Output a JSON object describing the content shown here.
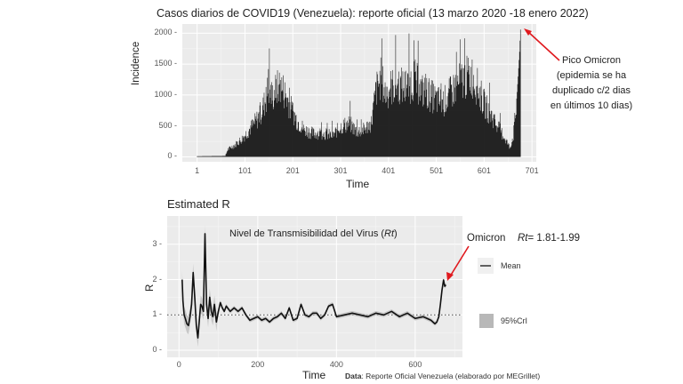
{
  "chart_data": [
    {
      "type": "bar",
      "title": "Casos diarios de COVID19  (Venezuela): reporte oficial (13 marzo 2020 -18 enero 2022)",
      "xlabel": "Time",
      "ylabel": "Incidence",
      "xticks": [
        "1",
        "101",
        "201",
        "301",
        "401",
        "501",
        "601",
        "701"
      ],
      "yticks": [
        "0",
        "500",
        "1000",
        "1500",
        "2000"
      ],
      "xlim": [
        -30,
        710
      ],
      "ylim": [
        -80,
        2150
      ],
      "grid": true,
      "annotation": {
        "lines": [
          "Pico Omicron",
          "(epidemia se ha",
          "duplicado c/2 dias",
          "en últimos 10 dias)"
        ],
        "arrow_color": "#e0191e",
        "x": 677,
        "y": 2060
      },
      "x_knots": [
        1,
        60,
        65,
        80,
        95,
        110,
        125,
        135,
        145,
        150,
        158,
        165,
        175,
        185,
        195,
        210,
        225,
        235,
        245,
        255,
        270,
        285,
        300,
        320,
        335,
        350,
        365,
        375,
        385,
        395,
        405,
        420,
        440,
        455,
        470,
        485,
        500,
        515,
        530,
        545,
        560,
        575,
        585,
        600,
        615,
        630,
        645,
        655,
        662,
        668,
        672,
        675,
        677
      ],
      "y_knots": [
        10,
        15,
        120,
        200,
        300,
        450,
        600,
        750,
        950,
        1150,
        1000,
        1100,
        1200,
        1050,
        850,
        600,
        450,
        420,
        380,
        400,
        380,
        350,
        500,
        550,
        420,
        450,
        560,
        1100,
        1300,
        1050,
        1150,
        1200,
        1150,
        1300,
        1100,
        1050,
        950,
        900,
        1050,
        1200,
        1300,
        1350,
        1200,
        900,
        700,
        500,
        300,
        150,
        350,
        800,
        1300,
        1700,
        2060
      ]
    },
    {
      "type": "line",
      "title": "Estimated R",
      "subtitle": "Nivel de Transmisibilidad del Virus (Rt)",
      "xlabel": "Time",
      "ylabel": "R",
      "xticks": [
        "0",
        "200",
        "400",
        "600"
      ],
      "yticks": [
        "0",
        "1",
        "2",
        "3"
      ],
      "xlim": [
        -30,
        720
      ],
      "ylim": [
        -0.2,
        3.8
      ],
      "reference_line": 1,
      "legend": [
        {
          "label": "Mean",
          "kind": "line"
        },
        {
          "label": "95%CrI",
          "kind": "box"
        }
      ],
      "annotation": {
        "text": "Omicron",
        "rt_label": "Rt",
        "rt_value": "= 1.81-1.99",
        "arrow_color": "#e0191e"
      },
      "series": [
        {
          "name": "Mean",
          "x": [
            8,
            10,
            13,
            16,
            20,
            24,
            28,
            32,
            36,
            40,
            44,
            48,
            52,
            55,
            58,
            62,
            66,
            70,
            74,
            78,
            82,
            86,
            90,
            95,
            100,
            105,
            110,
            115,
            120,
            130,
            140,
            150,
            160,
            170,
            180,
            190,
            200,
            210,
            220,
            230,
            240,
            250,
            260,
            270,
            280,
            290,
            300,
            310,
            320,
            330,
            340,
            350,
            360,
            370,
            380,
            390,
            400,
            420,
            440,
            460,
            480,
            500,
            520,
            540,
            560,
            580,
            600,
            620,
            640,
            650,
            655,
            660,
            664,
            668,
            672,
            675,
            678
          ],
          "y": [
            2.0,
            1.4,
            1.0,
            0.9,
            0.75,
            0.7,
            0.95,
            1.3,
            2.2,
            1.5,
            0.7,
            0.35,
            0.9,
            1.3,
            1.25,
            1.1,
            3.3,
            1.3,
            0.9,
            1.5,
            1.1,
            0.95,
            1.3,
            0.8,
            1.1,
            1.35,
            1.2,
            1.1,
            1.25,
            1.1,
            1.2,
            1.1,
            1.2,
            1.0,
            0.85,
            0.9,
            0.95,
            0.85,
            0.9,
            0.8,
            0.9,
            0.95,
            1.05,
            0.9,
            1.2,
            0.85,
            0.9,
            1.3,
            1.0,
            0.95,
            1.05,
            1.05,
            0.9,
            1.0,
            1.25,
            1.3,
            0.95,
            1.0,
            1.05,
            1.0,
            0.95,
            1.05,
            1.0,
            1.1,
            0.95,
            1.05,
            0.9,
            0.95,
            0.85,
            0.75,
            0.8,
            0.95,
            1.3,
            1.7,
            1.99,
            1.81,
            1.85
          ]
        }
      ]
    }
  ],
  "footer": {
    "data_label": "Data",
    "data_text": ": Reporte Oficial Venezuela (elaborado por MEGrillet)"
  }
}
